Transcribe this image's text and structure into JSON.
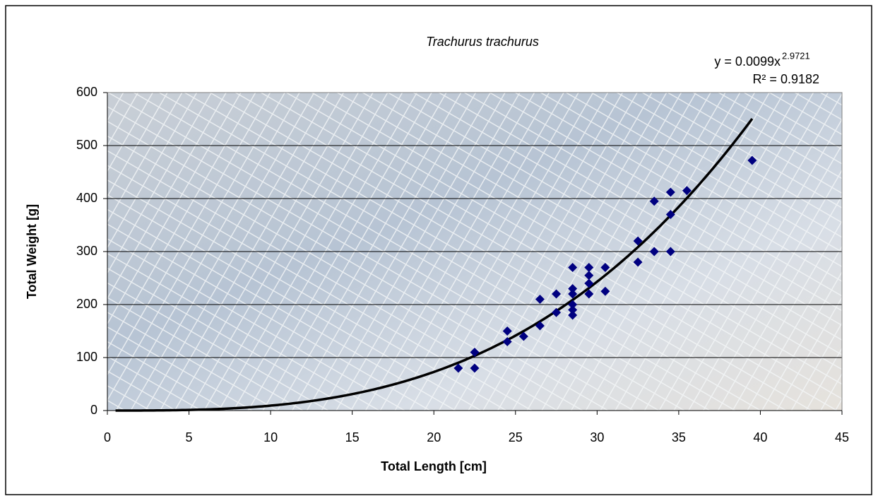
{
  "chart_data": {
    "type": "scatter",
    "title": "Trachurus trachurus",
    "x_label": "Total Length [cm]",
    "y_label": "Total Weight [g]",
    "xlim": [
      0,
      45
    ],
    "xticks": [
      0,
      5,
      10,
      15,
      20,
      25,
      30,
      35,
      40,
      45
    ],
    "ylim": [
      0,
      600
    ],
    "yticks": [
      0,
      100,
      200,
      300,
      400,
      500,
      600
    ],
    "grid": true,
    "series": [
      {
        "color": "#000080",
        "x": [
          21.5,
          22.5,
          22.5,
          24.5,
          24.5,
          25.5,
          26.5,
          26.5,
          27.5,
          27.5,
          28.5,
          28.5,
          28.5,
          28.5,
          28.5,
          28.5,
          29.5,
          29.5,
          29.5,
          29.5,
          30.5,
          30.5,
          32.5,
          32.5,
          33.5,
          33.5,
          34.5,
          34.5,
          34.5,
          35.5,
          39.5
        ],
        "values": [
          80,
          110,
          80,
          150,
          130,
          140,
          210,
          160,
          220,
          185,
          270,
          230,
          220,
          200,
          190,
          180,
          270,
          255,
          240,
          220,
          270,
          225,
          320,
          280,
          395,
          300,
          412,
          370,
          300,
          415,
          472
        ]
      }
    ],
    "trendline": {
      "color": "#000000",
      "coefficient": 0.0099,
      "exponent": 2.9721,
      "x_range": [
        0.5,
        39.5
      ],
      "equation": "y = 0.0099x",
      "equation_exponent": "2.9721",
      "r_squared_label": "R² = 0.9182"
    }
  }
}
